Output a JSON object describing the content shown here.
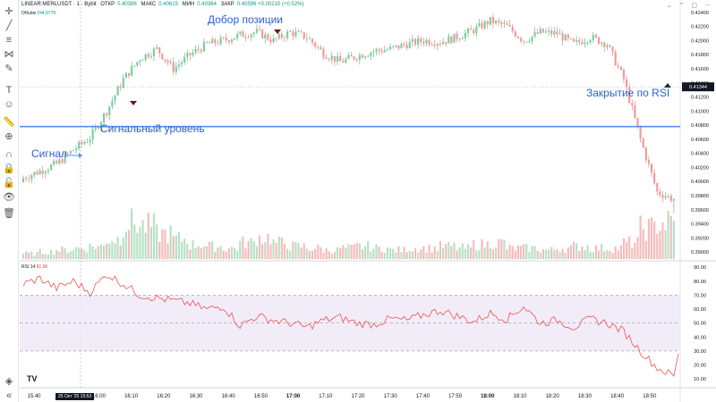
{
  "header": {
    "symbol": "LINEAR:MERLUSDT · 1 · Bybit",
    "open_label": "ОТКР",
    "open_value": "0.40386",
    "high_label": "МАКС",
    "high_value": "0.40615",
    "low_label": "МИН",
    "low_value": "0.40364",
    "close_label": "ЗАКР",
    "close_value": "0.40596 +0.00210 (+0.52%)"
  },
  "volume_label": {
    "name": "Объём",
    "value": "244.977K"
  },
  "rsi_label": {
    "name": "RSI 14",
    "value": "81.96"
  },
  "annotations": {
    "signal": "Сигнал",
    "signal_level": "Сигнальный уровень",
    "add_position": "Добор позиции",
    "close_rsi": "Закрытие по RSI"
  },
  "cursor_time": "25 Окт '25   15:53",
  "colors": {
    "up": "#26a69a",
    "down": "#ef5350",
    "up_candle": "#7dcf9b",
    "down_candle": "#f19a9a",
    "signal_line": "#5b8def",
    "rsi_line": "#ef5350",
    "rsi_band": "#ede7f6"
  },
  "icons": [
    "crosshair-icon",
    "trendline-icon",
    "fib-icon",
    "pattern-icon",
    "brush-icon",
    "text-icon",
    "emoji-icon",
    "ruler-icon",
    "zoom-icon",
    "magnet-icon",
    "lock-icon",
    "visibility-icon",
    "trash-icon"
  ],
  "chart_data": [
    {
      "type": "candlestick",
      "title": "LINEAR:MERLUSDT · 1 · Bybit",
      "x_ticks": [
        "15:40",
        "15:50",
        "16:00",
        "16:10",
        "16:20",
        "16:30",
        "16:40",
        "16:50",
        "17:00",
        "17:10",
        "17:20",
        "17:30",
        "17:40",
        "17:50",
        "18:00",
        "18:10",
        "18:20",
        "18:30",
        "18:40",
        "18:50"
      ],
      "y_ticks": [
        "0.42400",
        "0.42200",
        "0.42000",
        "0.41800",
        "0.41600",
        "0.41400",
        "0.41200",
        "0.41000",
        "0.40800",
        "0.40600",
        "0.40400",
        "0.40200",
        "0.40000",
        "0.39800",
        "0.39600",
        "0.39400",
        "0.39200",
        "0.39000"
      ],
      "ylim": [
        0.389,
        0.425
      ],
      "last_price": "0.41344",
      "signal_level": 0.4078,
      "close_approx": [
        0.4005,
        0.4015,
        0.4025,
        0.4045,
        0.4062,
        0.41,
        0.4145,
        0.4175,
        0.4188,
        0.416,
        0.418,
        0.4195,
        0.42,
        0.4208,
        0.4212,
        0.42,
        0.4212,
        0.4205,
        0.4182,
        0.417,
        0.4178,
        0.4185,
        0.4188,
        0.4195,
        0.42,
        0.4198,
        0.4205,
        0.4215,
        0.4228,
        0.422,
        0.42,
        0.4212,
        0.421,
        0.4195,
        0.4205,
        0.4195,
        0.4145,
        0.406,
        0.3985,
        0.3975
      ]
    },
    {
      "type": "bar",
      "title": "Объём",
      "values_relative": [
        0.15,
        0.2,
        0.25,
        0.3,
        0.35,
        0.55,
        1.0,
        0.9,
        0.7,
        0.55,
        0.4,
        0.35,
        0.3,
        0.45,
        0.6,
        0.45,
        0.35,
        0.3,
        0.25,
        0.3,
        0.35,
        0.3,
        0.25,
        0.3,
        0.3,
        0.35,
        0.3,
        0.4,
        0.45,
        0.3,
        0.3,
        0.25,
        0.3,
        0.35,
        0.3,
        0.3,
        0.45,
        0.85,
        1.0,
        0.95
      ]
    },
    {
      "type": "line",
      "title": "RSI 14",
      "y_ticks": [
        "90.00",
        "80.00",
        "70.00",
        "60.00",
        "50.00",
        "40.00",
        "30.00",
        "20.00",
        "10.00"
      ],
      "ylim": [
        5,
        92
      ],
      "band": [
        30,
        70
      ],
      "midline": 50,
      "values": [
        78,
        82,
        75,
        80,
        72,
        85,
        78,
        70,
        68,
        66,
        64,
        60,
        62,
        48,
        55,
        52,
        50,
        47,
        52,
        54,
        50,
        49,
        53,
        52,
        56,
        59,
        55,
        51,
        57,
        53,
        62,
        50,
        52,
        47,
        53,
        50,
        44,
        30,
        18,
        12
      ]
    }
  ]
}
